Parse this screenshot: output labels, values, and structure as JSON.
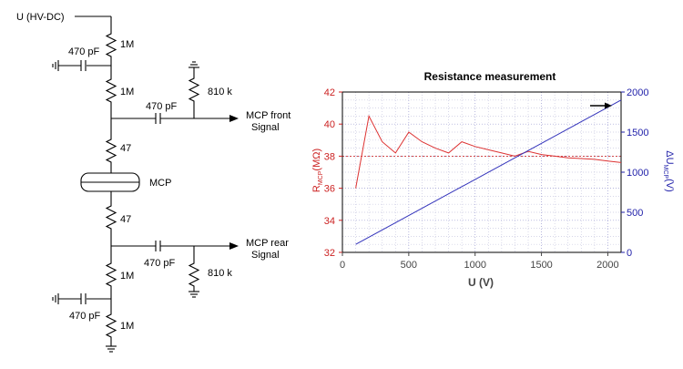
{
  "circuit": {
    "supply_label": "U (HV-DC)",
    "r_top": "1M",
    "cap_top_left": "470 pF",
    "r_second": "1M",
    "cap_front": "470 pF",
    "r_front_load": "810 k",
    "front_signal_line1": "MCP front",
    "front_signal_line2": "Signal",
    "r_47_top": "47",
    "mcp_label": "MCP",
    "r_47_bottom": "47",
    "cap_rear": "470 pF",
    "rear_signal_line1": "MCP rear",
    "rear_signal_line2": "Signal",
    "r_rear_load": "810 k",
    "r_third": "1M",
    "cap_bottom_left": "470 pF",
    "r_bottom": "1M"
  },
  "chart_data": {
    "type": "line",
    "title": "Resistance measurement",
    "xlabel": "U (V)",
    "ylabel_left": "R",
    "ylabel_left_sub": "MCP",
    "ylabel_left_unit": "(MΩ)",
    "ylabel_right": "ΔU",
    "ylabel_right_sub": "MCP",
    "ylabel_right_unit": "(V)",
    "xlim": [
      0,
      2100
    ],
    "xticks": [
      0,
      500,
      1000,
      1500,
      2000
    ],
    "ylim_left": [
      32,
      42
    ],
    "yticks_left": [
      32,
      34,
      36,
      38,
      40,
      42
    ],
    "ylim_right": [
      0,
      2000
    ],
    "yticks_right": [
      0,
      500,
      1000,
      1500,
      2000
    ],
    "reference_line_left": 38,
    "series": [
      {
        "name": "R_MCP",
        "axis": "left",
        "color": "#dd3333",
        "x": [
          100,
          200,
          300,
          400,
          500,
          600,
          700,
          800,
          900,
          1000,
          1100,
          1200,
          1300,
          1400,
          1500,
          1600,
          1700,
          1800,
          1900,
          2000,
          2100
        ],
        "y": [
          36.0,
          40.5,
          38.9,
          38.2,
          39.5,
          38.9,
          38.5,
          38.2,
          38.9,
          38.6,
          38.4,
          38.2,
          38.0,
          38.3,
          38.1,
          38.0,
          37.9,
          37.85,
          37.8,
          37.7,
          37.6
        ]
      },
      {
        "name": "ΔU_MCP",
        "axis": "right",
        "color": "#3333bb",
        "x": [
          100,
          2100
        ],
        "y": [
          100,
          1900
        ]
      }
    ]
  }
}
